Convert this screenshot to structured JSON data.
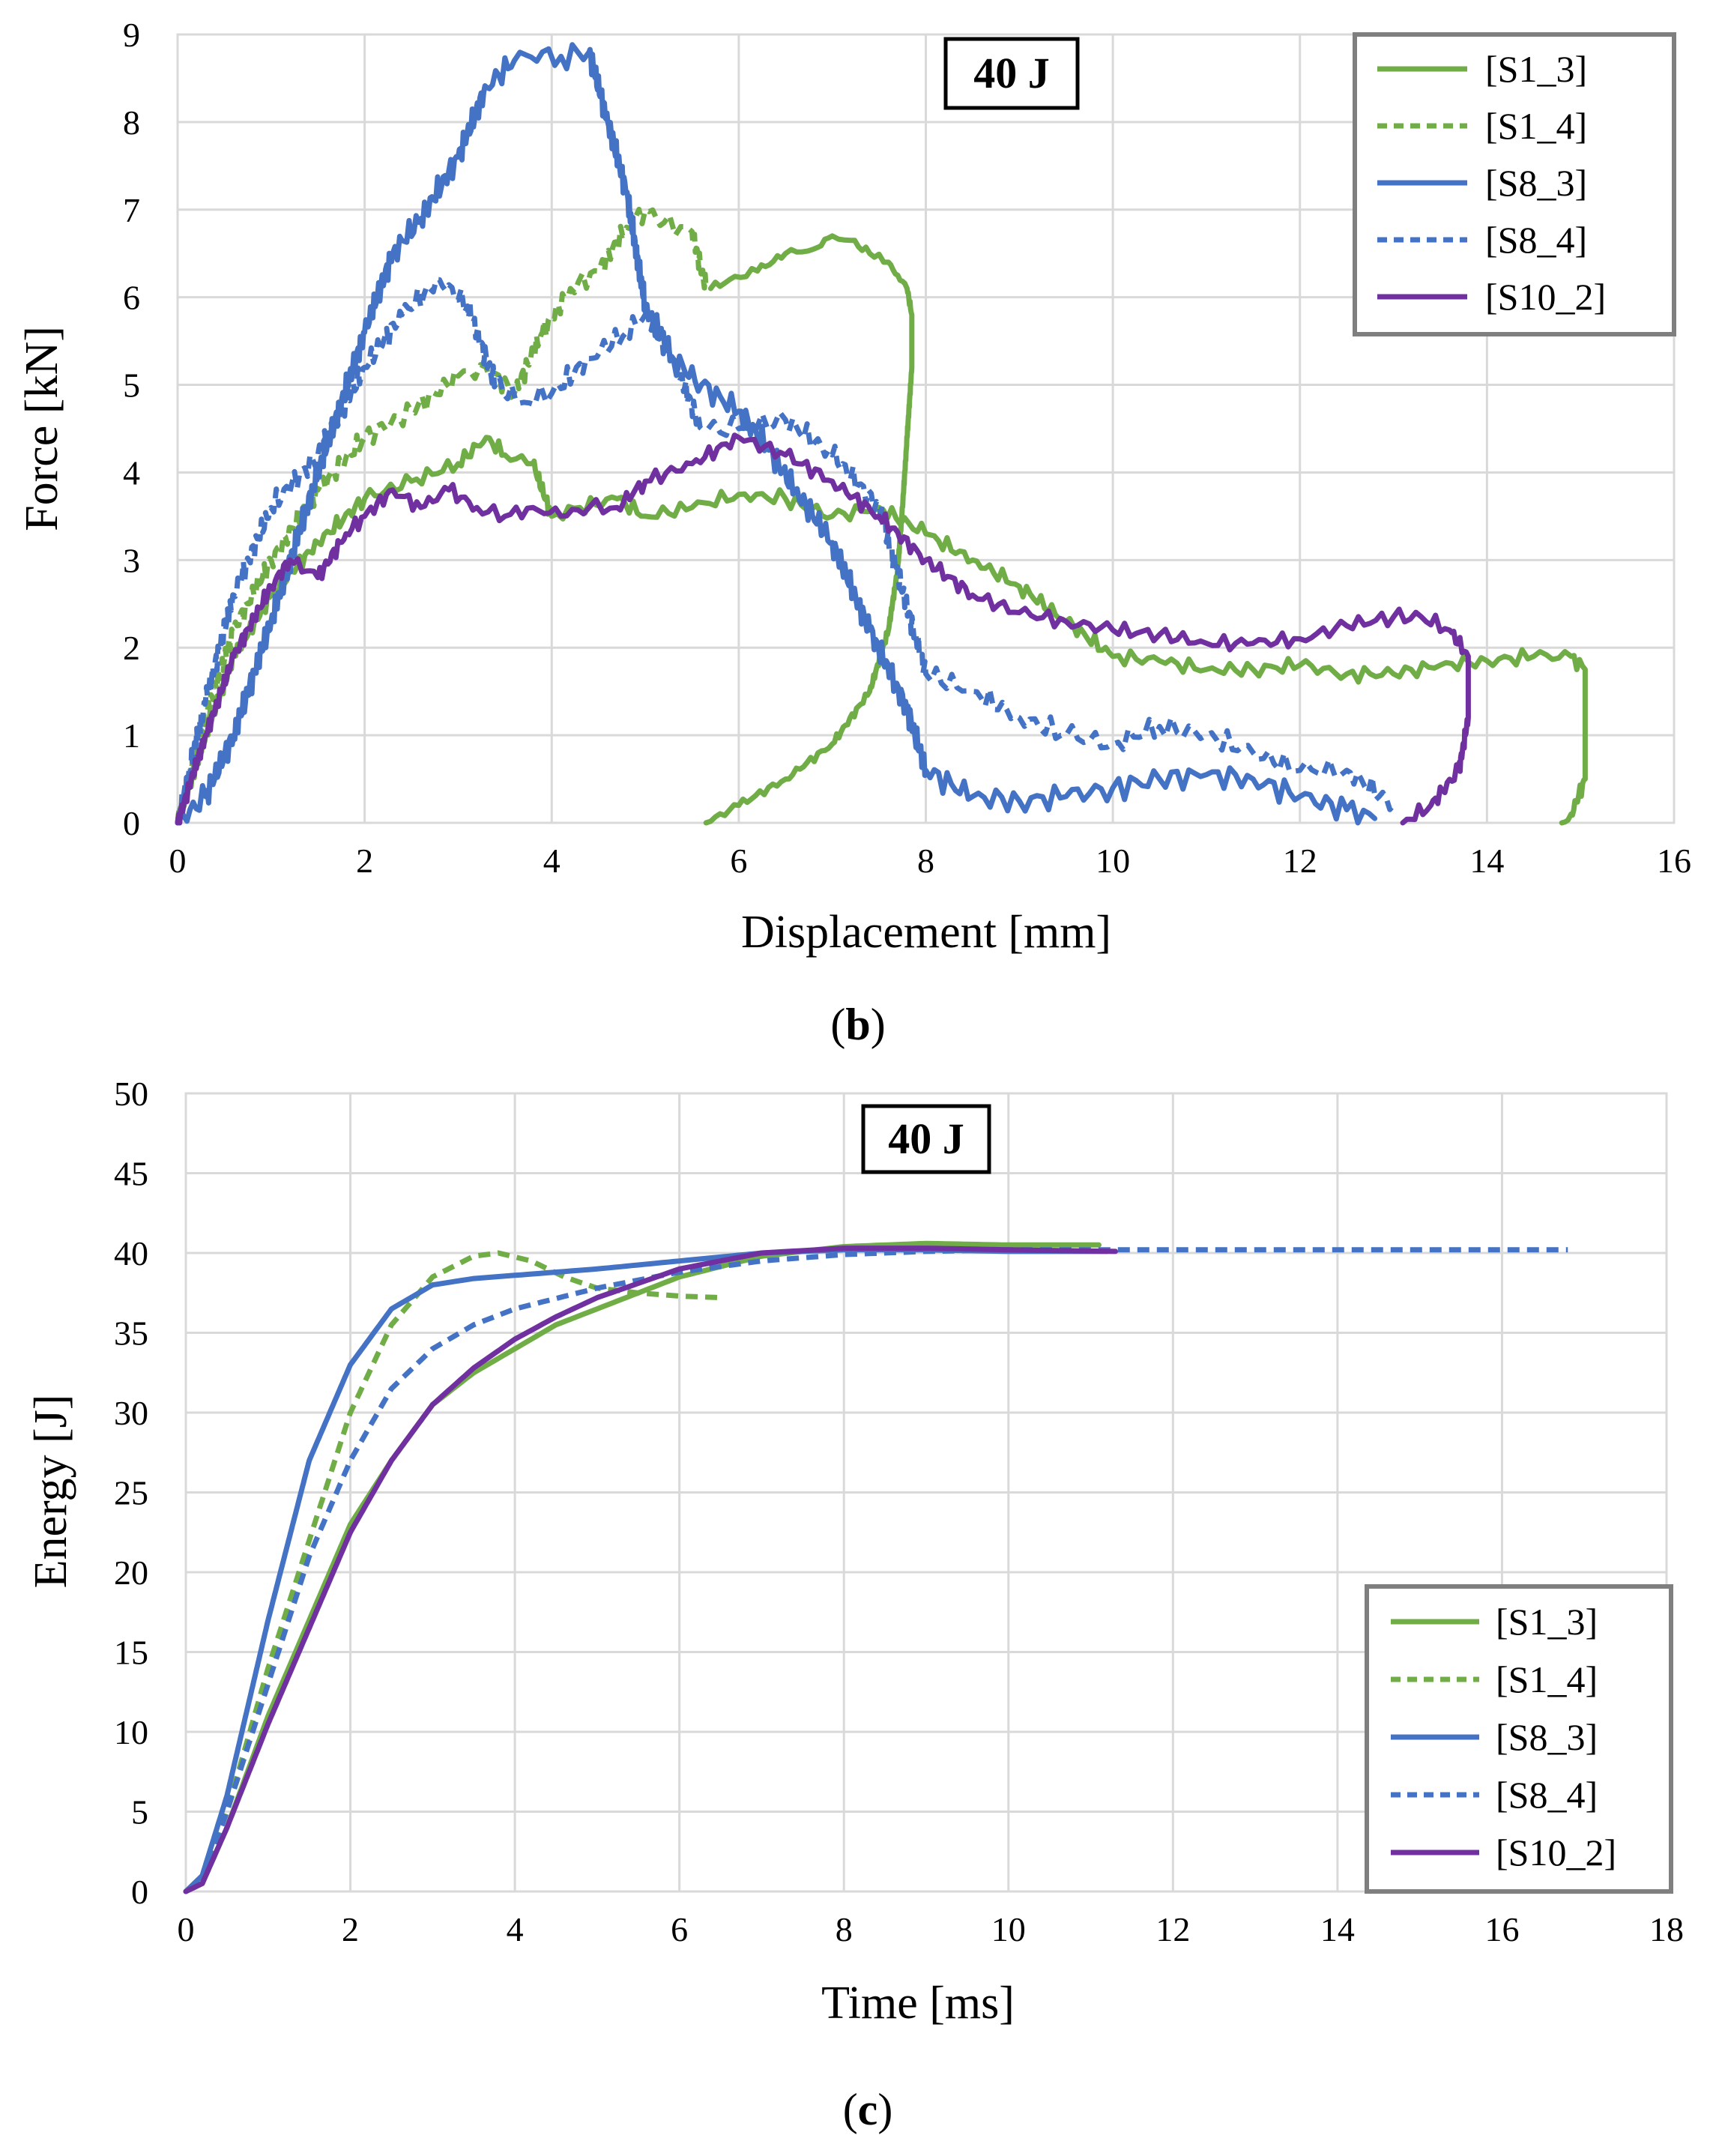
{
  "chart_data": [
    {
      "type": "line",
      "panel": "b",
      "caption_open": "(",
      "caption_letter": "b",
      "caption_close": ")",
      "annotation": "40 J",
      "xlabel": "Displacement [mm]",
      "ylabel": "Force [kN]",
      "xlim": [
        0,
        16
      ],
      "ylim": [
        0,
        9
      ],
      "xticks": [
        0,
        2,
        4,
        6,
        8,
        10,
        12,
        14,
        16
      ],
      "yticks": [
        0,
        1,
        2,
        3,
        4,
        5,
        6,
        7,
        8,
        9
      ],
      "grid": true,
      "legend_position": "top-right",
      "series": [
        {
          "name": "[S1_3]",
          "color": "#70ad47",
          "dash": "solid",
          "jitter": 0.06,
          "x": [
            0,
            0.3,
            0.6,
            1.0,
            1.5,
            2.0,
            2.5,
            3.0,
            3.3,
            3.5,
            3.8,
            4.0,
            4.3,
            4.7,
            5.0,
            5.5,
            6.0,
            6.5,
            7.0,
            7.5,
            8.0,
            8.5,
            9.0,
            9.5,
            10.0,
            10.5,
            11.0,
            11.5,
            12.0,
            12.5,
            13.0,
            13.5,
            14.0,
            14.5,
            14.9,
            15.05,
            15.05,
            14.9,
            14.8
          ],
          "y": [
            0,
            1.0,
            1.9,
            2.6,
            3.2,
            3.7,
            3.9,
            4.1,
            4.4,
            4.2,
            4.1,
            3.5,
            3.6,
            3.7,
            3.5,
            3.6,
            3.75,
            3.7,
            3.5,
            3.6,
            3.3,
            3.0,
            2.7,
            2.3,
            1.9,
            1.85,
            1.75,
            1.75,
            1.8,
            1.7,
            1.7,
            1.8,
            1.85,
            1.9,
            1.9,
            1.75,
            0.5,
            0.1,
            0
          ]
        },
        {
          "name": "[S1_3] return",
          "color": "#70ad47",
          "dash": "solid",
          "jitter": 0.03,
          "legend": false,
          "x": [
            5.65,
            6.0,
            6.5,
            7.0,
            7.4,
            7.6,
            7.7,
            7.75,
            7.8,
            7.85,
            7.85,
            7.8,
            7.7,
            7.6,
            7.4,
            7.2,
            7.0,
            6.8,
            6.5,
            6.2,
            5.9,
            5.7
          ],
          "y": [
            0,
            0.2,
            0.5,
            0.9,
            1.5,
            2.2,
            2.9,
            3.6,
            4.4,
            5.2,
            5.8,
            6.1,
            6.25,
            6.4,
            6.5,
            6.65,
            6.7,
            6.55,
            6.5,
            6.3,
            6.2,
            6.1
          ]
        },
        {
          "name": "[S1_4]",
          "color": "#70ad47",
          "dash": "dash",
          "jitter": 0.08,
          "x": [
            0,
            0.3,
            0.6,
            1.0,
            1.5,
            2.0,
            2.5,
            3.0,
            3.3,
            3.6,
            3.9,
            4.2,
            4.5,
            4.8,
            5.0,
            5.2,
            5.5,
            5.65
          ],
          "y": [
            0,
            1.2,
            2.2,
            3.0,
            3.8,
            4.4,
            4.7,
            5.1,
            5.2,
            4.9,
            5.6,
            6.1,
            6.3,
            6.8,
            7.0,
            6.85,
            6.75,
            6.1
          ]
        },
        {
          "name": "[S8_3]",
          "color": "#4472c4",
          "dash": "solid",
          "jitter": 0.1,
          "x": [
            0,
            0.3,
            0.6,
            1.0,
            1.5,
            2.0,
            2.3,
            2.6,
            3.0,
            3.3,
            3.6,
            3.9,
            4.1,
            4.4,
            4.6,
            4.8,
            5.0,
            5.3,
            5.6,
            6.0,
            6.3,
            6.6,
            7.0,
            7.4,
            7.8,
            8.0,
            8.5,
            9.0,
            9.5,
            10.0,
            10.5,
            11.0,
            11.5,
            12.0,
            12.5,
            12.8
          ],
          "y": [
            0,
            0.3,
            1.0,
            2.3,
            4.0,
            5.6,
            6.5,
            6.9,
            7.6,
            8.4,
            8.7,
            8.8,
            8.75,
            8.8,
            8.0,
            7.2,
            5.9,
            5.3,
            5.0,
            4.7,
            4.3,
            3.8,
            3.2,
            2.2,
            1.3,
            0.6,
            0.3,
            0.25,
            0.3,
            0.4,
            0.5,
            0.55,
            0.5,
            0.3,
            0.15,
            0.05
          ]
        },
        {
          "name": "[S8_4]",
          "color": "#4472c4",
          "dash": "dash",
          "jitter": 0.09,
          "x": [
            0,
            0.3,
            0.6,
            1.0,
            1.5,
            2.0,
            2.4,
            2.8,
            3.1,
            3.4,
            3.7,
            4.0,
            4.4,
            4.8,
            5.0,
            5.3,
            5.6,
            6.0,
            6.5,
            7.0,
            7.5,
            8.0,
            8.5,
            9.0,
            9.5,
            10.0,
            10.5,
            11.0,
            11.5,
            12.0,
            12.5,
            13.0
          ],
          "y": [
            0,
            1.4,
            2.6,
            3.6,
            4.2,
            5.2,
            5.8,
            6.2,
            5.9,
            5.0,
            4.8,
            4.9,
            5.3,
            5.6,
            5.8,
            5.3,
            4.5,
            4.5,
            4.6,
            4.2,
            3.6,
            1.7,
            1.5,
            1.2,
            1.0,
            0.9,
            1.1,
            1.0,
            0.8,
            0.6,
            0.6,
            0.2
          ]
        },
        {
          "name": "[S10_2]",
          "color": "#7030a0",
          "dash": "solid",
          "jitter": 0.06,
          "x": [
            0,
            0.3,
            0.6,
            1.0,
            1.2,
            1.5,
            1.8,
            2.0,
            2.3,
            2.6,
            2.9,
            3.2,
            3.5,
            3.8,
            4.1,
            4.4,
            4.7,
            5.0,
            5.5,
            6.0,
            6.5,
            7.0,
            7.5,
            8.0,
            8.5,
            9.0,
            9.5,
            10.0,
            10.5,
            11.0,
            11.5,
            12.0,
            12.5,
            13.0,
            13.3,
            13.6,
            13.8,
            13.8,
            13.7,
            13.4,
            13.1
          ],
          "y": [
            0,
            1.0,
            1.9,
            2.7,
            3.0,
            2.8,
            3.3,
            3.5,
            3.8,
            3.6,
            3.8,
            3.6,
            3.5,
            3.6,
            3.5,
            3.6,
            3.6,
            3.9,
            4.1,
            4.4,
            4.2,
            3.9,
            3.5,
            3.0,
            2.6,
            2.4,
            2.3,
            2.2,
            2.15,
            2.05,
            2.05,
            2.1,
            2.25,
            2.35,
            2.35,
            2.2,
            1.9,
            1.2,
            0.6,
            0.2,
            0
          ]
        }
      ]
    },
    {
      "type": "line",
      "panel": "c",
      "caption_open": "(",
      "caption_letter": "c",
      "caption_close": ")",
      "annotation": "40 J",
      "xlabel": "Time [ms]",
      "ylabel": "Energy [J]",
      "xlim": [
        0,
        18
      ],
      "ylim": [
        0,
        50
      ],
      "xticks": [
        0,
        2,
        4,
        6,
        8,
        10,
        12,
        14,
        16,
        18
      ],
      "yticks": [
        0,
        5,
        10,
        15,
        20,
        25,
        30,
        35,
        40,
        45,
        50
      ],
      "grid": true,
      "legend_position": "bottom-right",
      "series": [
        {
          "name": "[S1_3]",
          "color": "#70ad47",
          "dash": "solid",
          "jitter": 0,
          "x": [
            0,
            0.2,
            0.5,
            1.0,
            1.5,
            2.0,
            2.5,
            3.0,
            3.5,
            4.0,
            4.5,
            5.0,
            6.0,
            7.0,
            8.0,
            9.0,
            10.0,
            11.1
          ],
          "y": [
            0,
            0.5,
            4,
            11,
            17,
            23,
            27,
            30.5,
            32.5,
            34,
            35.5,
            36.5,
            38.5,
            39.8,
            40.4,
            40.6,
            40.5,
            40.5
          ]
        },
        {
          "name": "[S1_4]",
          "color": "#70ad47",
          "dash": "dash",
          "jitter": 0,
          "x": [
            0,
            0.2,
            0.5,
            1.0,
            1.5,
            2.0,
            2.5,
            3.0,
            3.5,
            3.8,
            4.2,
            4.6,
            5.0,
            5.5,
            6.0,
            6.5
          ],
          "y": [
            0,
            0.8,
            5,
            14,
            22,
            30,
            35.5,
            38.5,
            39.8,
            40,
            39.5,
            38.5,
            37.8,
            37.5,
            37.3,
            37.2
          ]
        },
        {
          "name": "[S8_3]",
          "color": "#4472c4",
          "dash": "solid",
          "jitter": 0,
          "x": [
            0,
            0.2,
            0.5,
            1.0,
            1.5,
            2.0,
            2.5,
            3.0,
            3.5,
            4.0,
            5.0,
            6.0,
            7.0,
            8.0,
            9.0,
            10.0,
            11.2
          ],
          "y": [
            0,
            1,
            6,
            17,
            27,
            33,
            36.5,
            38,
            38.4,
            38.6,
            39,
            39.5,
            40,
            40.2,
            40.2,
            40.1,
            40.1
          ]
        },
        {
          "name": "[S8_4]",
          "color": "#4472c4",
          "dash": "dash",
          "jitter": 0,
          "x": [
            0,
            0.2,
            0.5,
            1.0,
            1.5,
            2.0,
            2.5,
            3.0,
            3.5,
            4.0,
            5.0,
            6.0,
            7.0,
            8.0,
            9.0,
            10.0,
            12.0,
            14.0,
            16.0,
            16.8
          ],
          "y": [
            0,
            0.7,
            5,
            13,
            21,
            27,
            31.5,
            34,
            35.5,
            36.5,
            37.8,
            38.8,
            39.5,
            39.9,
            40.1,
            40.2,
            40.2,
            40.2,
            40.2,
            40.2
          ]
        },
        {
          "name": "[S10_2]",
          "color": "#7030a0",
          "dash": "solid",
          "jitter": 0,
          "x": [
            0,
            0.2,
            0.5,
            1.0,
            1.5,
            2.0,
            2.5,
            3.0,
            3.5,
            4.0,
            4.5,
            5.0,
            6.0,
            7.0,
            8.0,
            9.0,
            10.0,
            11.3
          ],
          "y": [
            0,
            0.5,
            4,
            10.5,
            16.5,
            22.5,
            27,
            30.5,
            32.8,
            34.6,
            36,
            37.2,
            39,
            40,
            40.3,
            40.3,
            40.2,
            40.1
          ]
        }
      ]
    }
  ]
}
